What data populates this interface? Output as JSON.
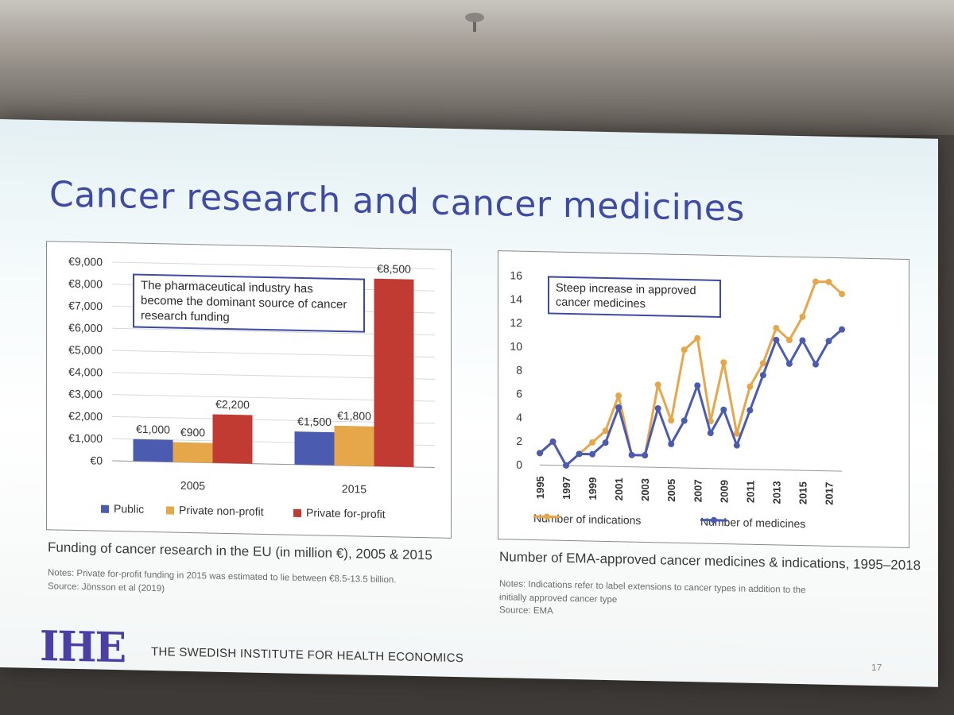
{
  "slide": {
    "title": "Cancer research and cancer medicines",
    "org_name": "THE SWEDISH INSTITUTE FOR HEALTH ECONOMICS",
    "logo_text": "IHE",
    "page_number": "17"
  },
  "left_panel": {
    "callout": "The pharmaceutical industry has become the dominant source of cancer research funding",
    "caption": "Funding of cancer research in the EU (in million €), 2005 & 2015",
    "note_line1": "Notes: Private for-profit funding in 2015 was estimated to lie between €8.5-13.5 billion.",
    "note_line2": "Source: Jönsson et al (2019)"
  },
  "right_panel": {
    "callout": "Steep increase in approved cancer medicines",
    "caption": "Number of EMA-approved cancer medicines & indications, 1995–2018",
    "note_line1": "Notes: Indications refer to label extensions to cancer types in addition to the",
    "note_line2": "initially approved cancer type",
    "note_line3": "Source: EMA"
  },
  "chart_data": [
    {
      "type": "bar",
      "categories": [
        "2005",
        "2015"
      ],
      "series": [
        {
          "name": "Public",
          "values": [
            1000,
            1500
          ],
          "labels": [
            "€1,000",
            "€1,500"
          ],
          "color": "#4a5bb0"
        },
        {
          "name": "Private non-profit",
          "values": [
            900,
            1800
          ],
          "labels": [
            "€900",
            "€1,800"
          ],
          "color": "#e6a64a"
        },
        {
          "name": "Private for-profit",
          "values": [
            2200,
            8500
          ],
          "labels": [
            "€2,200",
            "€8,500"
          ],
          "color": "#c23b32"
        }
      ],
      "ylim": [
        0,
        9000
      ],
      "yticks": [
        "€0",
        "€1,000",
        "€2,000",
        "€3,000",
        "€4,000",
        "€5,000",
        "€6,000",
        "€7,000",
        "€8,000",
        "€9,000"
      ],
      "grid": true,
      "legend": "bottom"
    },
    {
      "type": "line",
      "x": [
        1995,
        1996,
        1997,
        1998,
        1999,
        2000,
        2001,
        2002,
        2003,
        2004,
        2005,
        2006,
        2007,
        2008,
        2009,
        2010,
        2011,
        2012,
        2013,
        2014,
        2015,
        2016,
        2017,
        2018
      ],
      "xticks": [
        "1995",
        "1997",
        "1999",
        "2001",
        "2003",
        "2005",
        "2007",
        "2009",
        "2011",
        "2013",
        "2015",
        "2017"
      ],
      "series": [
        {
          "name": "Number of indications",
          "values": [
            1,
            2,
            0,
            1,
            2,
            3,
            6,
            1,
            1,
            7,
            4,
            10,
            11,
            4,
            9,
            3,
            7,
            9,
            12,
            11,
            13,
            16,
            16,
            15
          ],
          "color": "#e6a64a"
        },
        {
          "name": "Number of medicines",
          "values": [
            1,
            2,
            0,
            1,
            1,
            2,
            5,
            1,
            1,
            5,
            2,
            4,
            7,
            3,
            5,
            2,
            5,
            8,
            11,
            9,
            11,
            9,
            11,
            12
          ],
          "color": "#4a5bb0"
        }
      ],
      "ylim": [
        0,
        16
      ],
      "yticks": [
        "0",
        "2",
        "4",
        "6",
        "8",
        "10",
        "12",
        "14",
        "16"
      ],
      "grid": false,
      "legend": "bottom"
    }
  ]
}
